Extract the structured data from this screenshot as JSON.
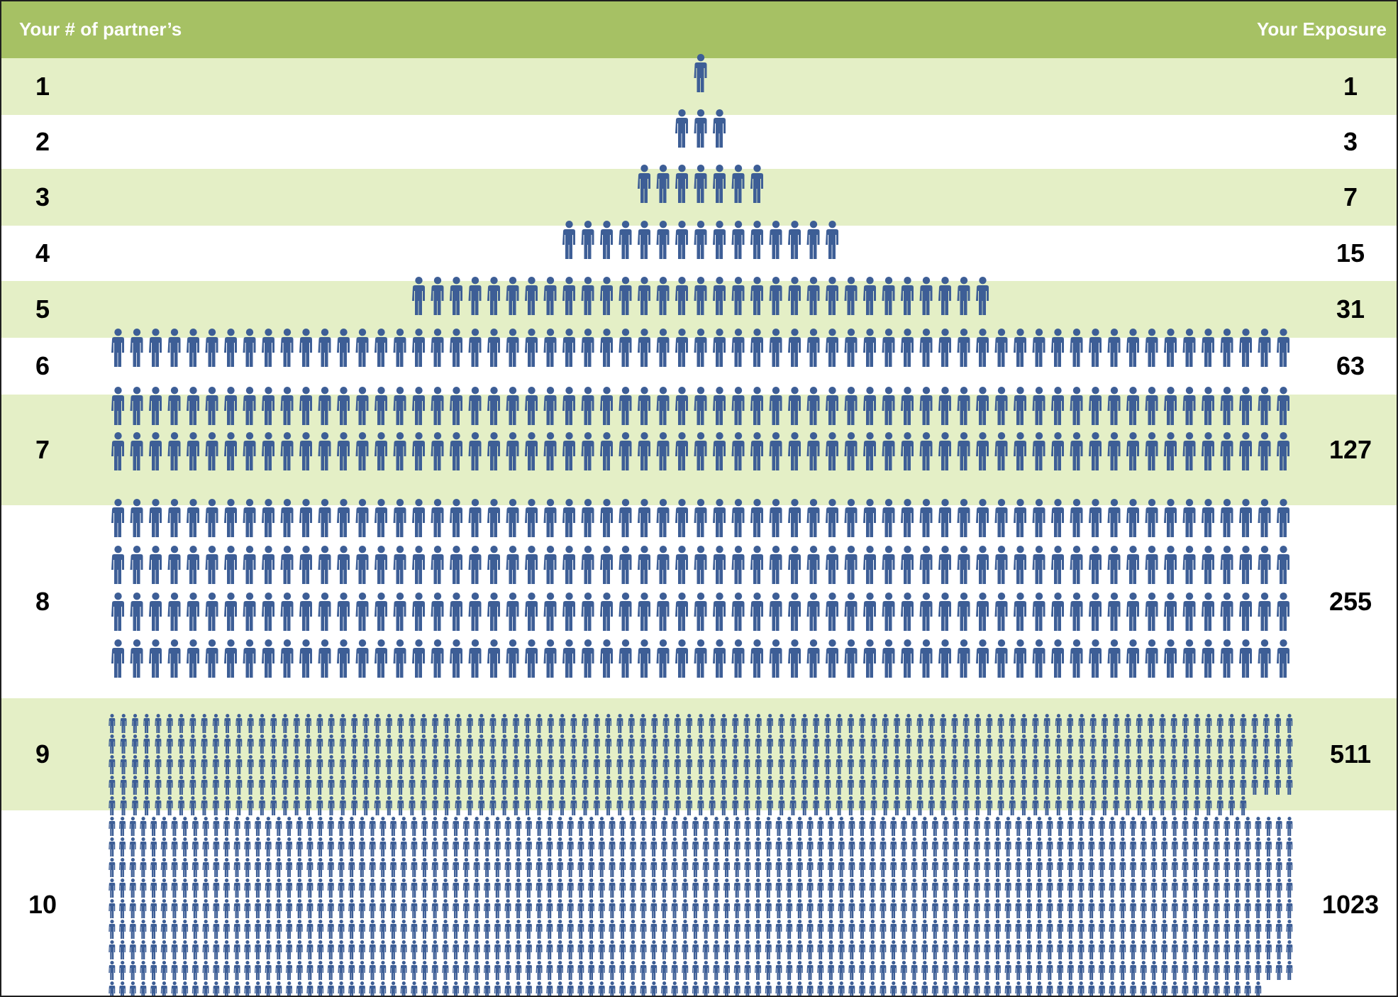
{
  "header": {
    "left_label": "Your # of partner’s",
    "right_label": "Your Exposure"
  },
  "colors": {
    "header_bg": "#a6c164",
    "band_light": "#e4efc6",
    "band_white": "#ffffff",
    "figure": "#3d5e96"
  },
  "chart_data": {
    "type": "table",
    "columns": [
      "Your # of partner’s",
      "Your Exposure"
    ],
    "categories": [
      "1",
      "2",
      "3",
      "4",
      "5",
      "6",
      "7",
      "8",
      "9",
      "10"
    ],
    "values": [
      1,
      3,
      7,
      15,
      31,
      63,
      127,
      255,
      511,
      1023
    ],
    "rows": [
      {
        "partners": "1",
        "exposure": "1"
      },
      {
        "partners": "2",
        "exposure": "3"
      },
      {
        "partners": "3",
        "exposure": "7"
      },
      {
        "partners": "4",
        "exposure": "15"
      },
      {
        "partners": "5",
        "exposure": "31"
      },
      {
        "partners": "6",
        "exposure": "63"
      },
      {
        "partners": "7",
        "exposure": "127"
      },
      {
        "partners": "8",
        "exposure": "255"
      },
      {
        "partners": "9",
        "exposure": "511"
      },
      {
        "partners": "10",
        "exposure": "1023"
      }
    ],
    "icon": "person-icon"
  }
}
